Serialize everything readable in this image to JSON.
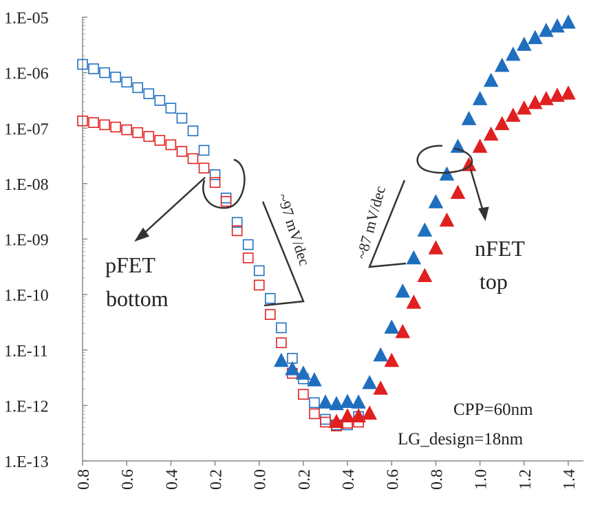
{
  "chart_data": {
    "type": "scatter",
    "title": "",
    "xlabel": "",
    "ylabel": "",
    "xlim": [
      -0.8,
      1.4
    ],
    "ylim_exp": [
      -13,
      -5
    ],
    "y_scale": "log",
    "grid": false,
    "x_tick_labels": [
      "0.8",
      "0.6",
      "0.4",
      "0.2",
      "0.0",
      "0.2",
      "0.4",
      "0.6",
      "0.8",
      "1.0",
      "1.2",
      "1.4"
    ],
    "y_tick_labels": [
      "1.E-05",
      "1.E-06",
      "1.E-07",
      "1.E-08",
      "1.E-09",
      "1.E-10",
      "1.E-11",
      "1.E-12",
      "1.E-13"
    ],
    "series": [
      {
        "marker": "open-square",
        "color": "#1f6fbf",
        "points": [
          [
            -0.8,
            -5.85
          ],
          [
            -0.75,
            -5.93
          ],
          [
            -0.7,
            -6.0
          ],
          [
            -0.65,
            -6.08
          ],
          [
            -0.6,
            -6.17
          ],
          [
            -0.55,
            -6.27
          ],
          [
            -0.5,
            -6.38
          ],
          [
            -0.45,
            -6.5
          ],
          [
            -0.4,
            -6.64
          ],
          [
            -0.35,
            -6.82
          ],
          [
            -0.3,
            -7.05
          ],
          [
            -0.25,
            -7.4
          ],
          [
            -0.2,
            -7.84
          ],
          [
            -0.15,
            -8.26
          ],
          [
            -0.1,
            -8.7
          ],
          [
            -0.05,
            -9.1
          ],
          [
            0.0,
            -9.57
          ],
          [
            0.05,
            -10.07
          ],
          [
            0.1,
            -10.6
          ],
          [
            0.15,
            -11.15
          ],
          [
            0.2,
            -11.52
          ],
          [
            0.25,
            -11.95
          ],
          [
            0.3,
            -12.25
          ],
          [
            0.35,
            -12.35
          ],
          [
            0.4,
            -12.35
          ],
          [
            0.45,
            -12.2
          ]
        ]
      },
      {
        "marker": "open-square",
        "color": "#e02020",
        "points": [
          [
            -0.8,
            -6.87
          ],
          [
            -0.75,
            -6.9
          ],
          [
            -0.7,
            -6.94
          ],
          [
            -0.65,
            -6.98
          ],
          [
            -0.6,
            -7.03
          ],
          [
            -0.55,
            -7.08
          ],
          [
            -0.5,
            -7.15
          ],
          [
            -0.45,
            -7.22
          ],
          [
            -0.4,
            -7.3
          ],
          [
            -0.35,
            -7.42
          ],
          [
            -0.3,
            -7.55
          ],
          [
            -0.25,
            -7.72
          ],
          [
            -0.2,
            -7.98
          ],
          [
            -0.15,
            -8.32
          ],
          [
            -0.1,
            -8.85
          ],
          [
            -0.05,
            -9.34
          ],
          [
            0.0,
            -9.83
          ],
          [
            0.05,
            -10.36
          ],
          [
            0.1,
            -10.87
          ],
          [
            0.15,
            -11.42
          ],
          [
            0.2,
            -11.8
          ],
          [
            0.25,
            -12.15
          ],
          [
            0.3,
            -12.3
          ],
          [
            0.35,
            -12.37
          ],
          [
            0.4,
            -12.32
          ],
          [
            0.45,
            -12.3
          ]
        ]
      },
      {
        "marker": "filled-triangle",
        "color": "#1f6fbf",
        "points": [
          [
            0.1,
            -11.2
          ],
          [
            0.15,
            -11.35
          ],
          [
            0.2,
            -11.43
          ],
          [
            0.25,
            -11.55
          ],
          [
            0.3,
            -11.95
          ],
          [
            0.35,
            -11.98
          ],
          [
            0.4,
            -11.94
          ],
          [
            0.45,
            -11.95
          ],
          [
            0.5,
            -11.6
          ],
          [
            0.55,
            -11.1
          ],
          [
            0.6,
            -10.6
          ],
          [
            0.65,
            -9.95
          ],
          [
            0.7,
            -9.35
          ],
          [
            0.75,
            -8.85
          ],
          [
            0.8,
            -8.34
          ],
          [
            0.85,
            -7.84
          ],
          [
            0.9,
            -7.34
          ],
          [
            0.95,
            -6.84
          ],
          [
            1.0,
            -6.48
          ],
          [
            1.05,
            -6.15
          ],
          [
            1.1,
            -5.88
          ],
          [
            1.15,
            -5.68
          ],
          [
            1.2,
            -5.5
          ],
          [
            1.25,
            -5.38
          ],
          [
            1.3,
            -5.25
          ],
          [
            1.35,
            -5.17
          ],
          [
            1.4,
            -5.1
          ]
        ]
      },
      {
        "marker": "filled-triangle",
        "color": "#e02020",
        "points": [
          [
            0.35,
            -12.3
          ],
          [
            0.4,
            -12.2
          ],
          [
            0.45,
            -12.2
          ],
          [
            0.5,
            -12.15
          ],
          [
            0.55,
            -11.7
          ],
          [
            0.6,
            -11.2
          ],
          [
            0.65,
            -10.68
          ],
          [
            0.7,
            -10.15
          ],
          [
            0.75,
            -9.67
          ],
          [
            0.8,
            -9.17
          ],
          [
            0.85,
            -8.67
          ],
          [
            0.9,
            -8.17
          ],
          [
            0.95,
            -7.67
          ],
          [
            1.0,
            -7.34
          ],
          [
            1.05,
            -7.12
          ],
          [
            1.1,
            -6.93
          ],
          [
            1.15,
            -6.78
          ],
          [
            1.2,
            -6.65
          ],
          [
            1.25,
            -6.55
          ],
          [
            1.3,
            -6.48
          ],
          [
            1.35,
            -6.42
          ],
          [
            1.4,
            -6.38
          ]
        ]
      }
    ],
    "annotations": {
      "pfet_label_line1": "pFET",
      "pfet_label_line2": "bottom",
      "nfet_label_line1": "nFET",
      "nfet_label_line2": "top",
      "slope_left": "~97 mV/dec",
      "slope_right": "~87 mV/dec",
      "cpp": "CPP=60nm",
      "lg_design": "LG_design=18nm"
    }
  }
}
